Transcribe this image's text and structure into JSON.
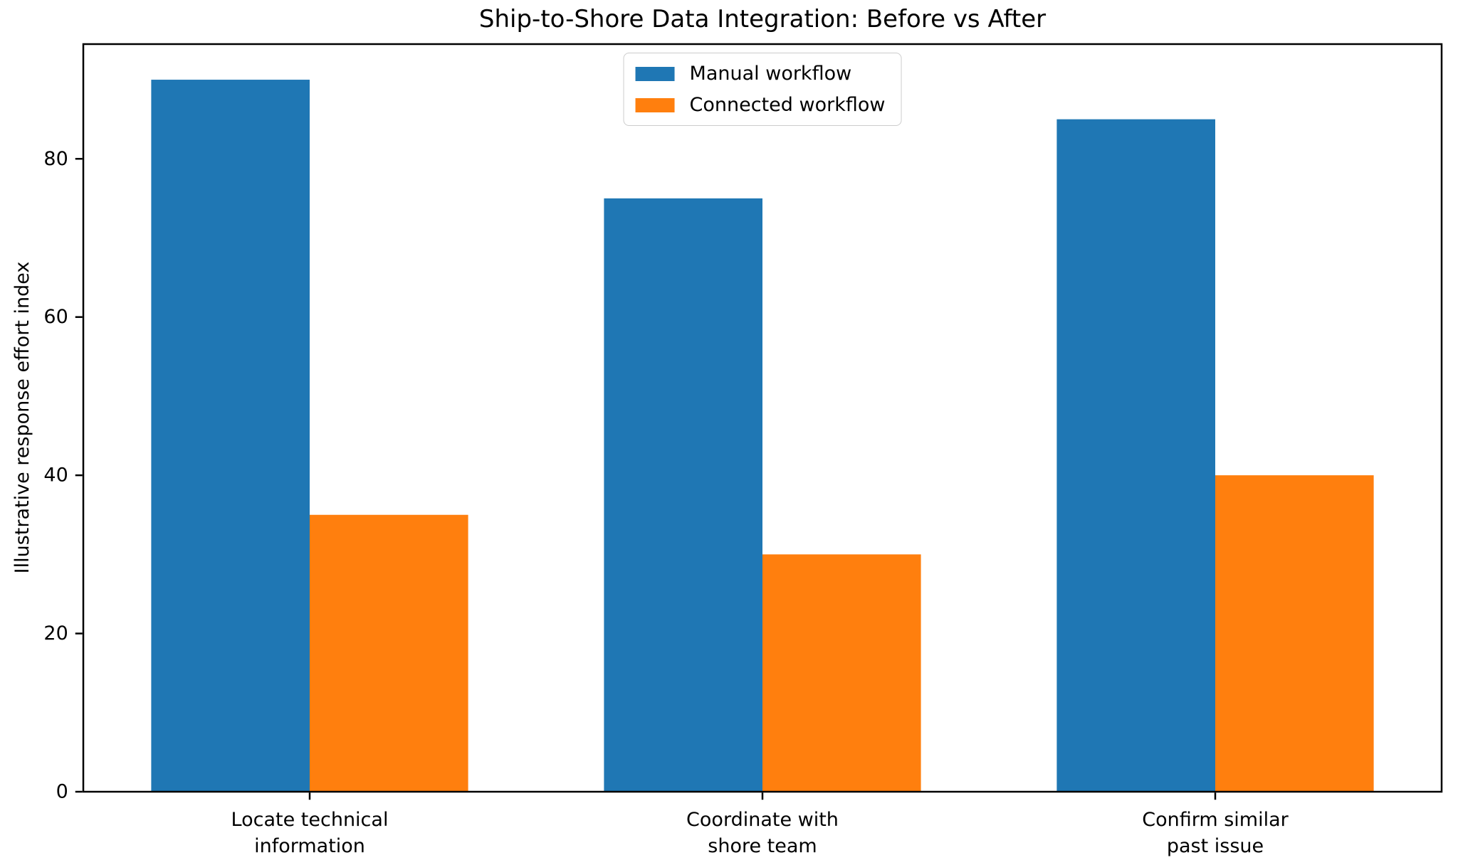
{
  "chart_data": {
    "type": "bar",
    "title": "Ship-to-Shore Data Integration: Before vs After",
    "xlabel": "",
    "ylabel": "Illustrative response effort index",
    "categories": [
      "Locate technical\ninformation",
      "Coordinate with\nshore team",
      "Confirm similar\npast issue"
    ],
    "series": [
      {
        "name": "Manual workflow",
        "color": "#1f77b4",
        "values": [
          90,
          75,
          85
        ]
      },
      {
        "name": "Connected workflow",
        "color": "#ff7f0e",
        "values": [
          35,
          30,
          40
        ]
      }
    ],
    "yticks": [
      0,
      20,
      40,
      60,
      80
    ],
    "ylim": [
      0,
      94.5
    ],
    "grid": false,
    "legend_position": "upper center",
    "bar_width_fraction": 0.35,
    "colors": {
      "axis": "#000000",
      "background": "#ffffff",
      "legend_border": "#cccccc"
    }
  }
}
